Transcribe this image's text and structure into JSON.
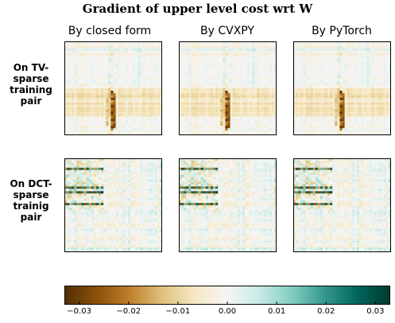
{
  "title": "Gradient of upper level cost wrt W",
  "columns": [
    "By closed form",
    "By CVXPY",
    "By PyTorch"
  ],
  "rows": [
    {
      "label": "On TV-\nsparse\ntraining\npair"
    },
    {
      "label": "On DCT-\nsparse\ntrainig\npair"
    }
  ],
  "chart_data": {
    "type": "heatmap",
    "colormap": "BrBG",
    "colorbar": {
      "vmin": -0.033,
      "vmax": 0.033,
      "ticks": [
        -0.03,
        -0.02,
        -0.01,
        0.0,
        0.01,
        0.02,
        0.03
      ],
      "tick_labels": [
        "−0.03",
        "−0.02",
        "−0.01",
        "0.00",
        "0.01",
        "0.02",
        "0.03"
      ],
      "orientation": "horizontal",
      "placement": "bottom"
    },
    "grid": false
  }
}
